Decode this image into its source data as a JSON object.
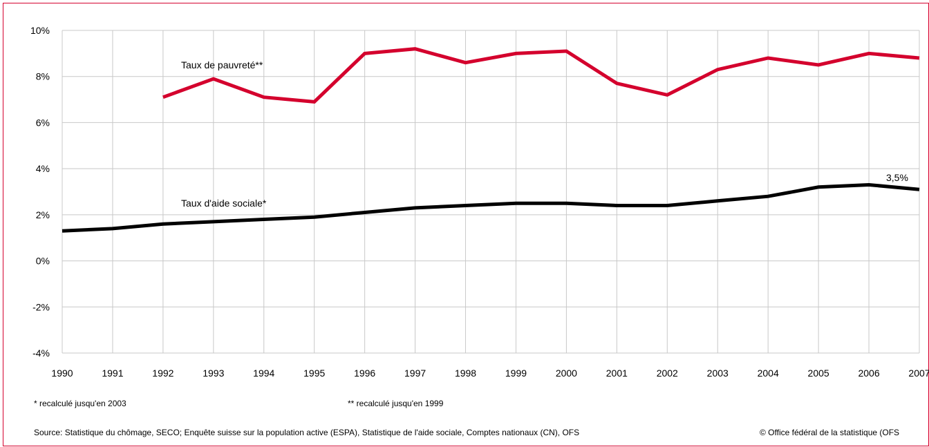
{
  "chart_data": {
    "type": "line",
    "x": [
      1990,
      1991,
      1992,
      1993,
      1994,
      1995,
      1996,
      1997,
      1998,
      1999,
      2000,
      2001,
      2002,
      2003,
      2004,
      2005,
      2006,
      2007
    ],
    "x_tick_labels": [
      "1990",
      "1991",
      "1992",
      "1993",
      "1994",
      "1995",
      "1996",
      "1997",
      "1998",
      "1999",
      "2000",
      "2001",
      "2002",
      "2003",
      "2004",
      "2005",
      "2006",
      "2007"
    ],
    "ylim": [
      -4,
      10
    ],
    "y_ticks": [
      -4,
      -2,
      0,
      2,
      4,
      6,
      8,
      10
    ],
    "y_tick_labels": [
      "-4%",
      "-2%",
      "0%",
      "2%",
      "4%",
      "6%",
      "8%",
      "10%"
    ],
    "grid": true,
    "series": [
      {
        "name": "Taux de pauvreté**",
        "color": "#d4002d",
        "values": [
          null,
          null,
          7.1,
          7.9,
          7.1,
          6.9,
          9.0,
          9.2,
          8.6,
          9.0,
          9.1,
          7.7,
          7.2,
          8.3,
          8.8,
          8.5,
          9.0,
          8.8
        ]
      },
      {
        "name": "Taux d'aide sociale*",
        "color": "#000000",
        "values": [
          1.3,
          1.4,
          1.6,
          1.7,
          1.8,
          1.9,
          2.1,
          2.3,
          2.4,
          2.5,
          2.5,
          2.4,
          2.4,
          2.6,
          2.8,
          3.2,
          3.3,
          3.1
        ]
      }
    ],
    "annotations": [
      {
        "text": "3,5%",
        "x": 2006.8,
        "y": 3.5
      }
    ]
  },
  "notes": {
    "footnote_1": "* recalculé jusqu'en 2003",
    "footnote_2": "** recalculé jusqu'en 1999",
    "source": "Source: Statistique du chômage, SECO; Enquête suisse sur la population active (ESPA), Statistique de l'aide sociale, Comptes nationaux (CN), OFS",
    "copyright": "© Office fédéral de la statistique (OFS"
  }
}
